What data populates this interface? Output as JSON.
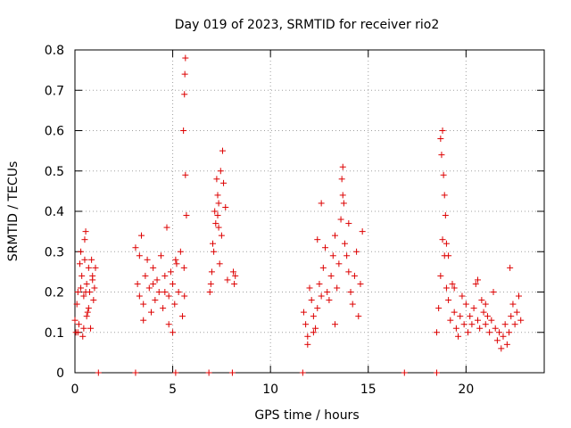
{
  "chart_data": {
    "type": "scatter",
    "title": "Day 019 of 2023, SRMTID for receiver rio2",
    "xlabel": "GPS time / hours",
    "ylabel": "SRMTID / TECUs",
    "xlim": [
      0,
      24
    ],
    "ylim": [
      0,
      0.8
    ],
    "xticks": [
      0,
      5,
      10,
      15,
      20
    ],
    "yticks": [
      0,
      0.1,
      0.2,
      0.3,
      0.4,
      0.5,
      0.6,
      0.7,
      0.8
    ],
    "xtick_labels": [
      "0",
      "5",
      "10",
      "15",
      "20"
    ],
    "ytick_labels": [
      "0",
      "0.1",
      "0.2",
      "0.3",
      "0.4",
      "0.5",
      "0.6",
      "0.7",
      "0.8"
    ],
    "grid": true,
    "marker": "+",
    "color": "#dd0000",
    "series": [
      {
        "name": "SRMTID",
        "x": [
          0.0,
          0.05,
          0.1,
          0.15,
          0.2,
          0.25,
          0.3,
          0.35,
          0.4,
          0.45,
          0.5,
          0.55,
          0.6,
          0.65,
          0.7,
          0.75,
          0.8,
          0.85,
          0.9,
          0.95,
          1.0,
          1.05,
          0.15,
          0.3,
          0.5,
          0.7,
          0.9,
          0.6,
          0.55,
          0.45,
          3.1,
          3.2,
          3.3,
          3.4,
          3.5,
          3.6,
          3.7,
          3.8,
          3.9,
          4.0,
          4.1,
          4.2,
          4.3,
          4.4,
          4.5,
          4.6,
          4.7,
          4.8,
          4.9,
          5.0,
          5.1,
          5.2,
          5.3,
          5.4,
          5.5,
          5.6,
          5.65,
          5.55,
          5.6,
          5.62,
          5.65,
          5.7,
          5.58,
          5.0,
          4.8,
          3.3,
          3.5,
          4.0,
          4.6,
          5.15,
          6.9,
          7.0,
          7.1,
          7.2,
          7.3,
          7.4,
          7.5,
          7.6,
          7.7,
          7.8,
          6.95,
          7.05,
          7.15,
          7.25,
          7.35,
          7.45,
          7.55,
          8.1,
          8.15,
          8.2,
          7.3,
          7.35,
          11.7,
          11.8,
          11.9,
          12.0,
          12.1,
          12.2,
          12.3,
          12.4,
          12.5,
          12.6,
          12.7,
          12.8,
          12.9,
          13.0,
          13.1,
          13.2,
          13.3,
          13.4,
          13.5,
          13.6,
          13.7,
          13.8,
          13.9,
          14.0,
          14.1,
          14.2,
          14.3,
          14.4,
          14.5,
          14.6,
          14.7,
          13.65,
          13.7,
          13.75,
          12.6,
          12.4,
          14.0,
          11.9,
          12.2,
          13.3,
          18.5,
          18.6,
          18.7,
          18.8,
          18.9,
          19.0,
          19.1,
          19.2,
          19.3,
          19.4,
          19.5,
          19.6,
          19.7,
          19.8,
          19.9,
          20.0,
          20.1,
          20.2,
          20.3,
          20.4,
          20.5,
          20.6,
          20.7,
          20.8,
          20.9,
          21.0,
          21.1,
          21.2,
          21.3,
          21.4,
          21.5,
          21.6,
          21.7,
          21.8,
          21.9,
          22.0,
          22.1,
          22.2,
          22.3,
          22.4,
          22.5,
          22.6,
          22.7,
          22.8,
          18.75,
          18.8,
          18.85,
          18.9,
          18.95,
          19.0,
          18.7,
          19.1,
          22.25,
          20.6,
          21.0,
          19.4,
          1.2,
          3.1,
          5.15,
          6.85,
          8.05,
          11.65,
          16.85,
          18.5
        ],
        "y": [
          0.13,
          0.1,
          0.17,
          0.2,
          0.12,
          0.27,
          0.3,
          0.24,
          0.09,
          0.19,
          0.33,
          0.35,
          0.22,
          0.15,
          0.26,
          0.2,
          0.11,
          0.28,
          0.23,
          0.18,
          0.21,
          0.26,
          0.1,
          0.21,
          0.28,
          0.16,
          0.24,
          0.14,
          0.2,
          0.11,
          0.31,
          0.22,
          0.19,
          0.34,
          0.17,
          0.24,
          0.28,
          0.21,
          0.15,
          0.26,
          0.18,
          0.23,
          0.2,
          0.29,
          0.16,
          0.24,
          0.36,
          0.19,
          0.25,
          0.22,
          0.17,
          0.27,
          0.2,
          0.3,
          0.14,
          0.19,
          0.49,
          0.6,
          0.69,
          0.74,
          0.78,
          0.39,
          0.26,
          0.1,
          0.12,
          0.29,
          0.13,
          0.22,
          0.2,
          0.28,
          0.2,
          0.25,
          0.3,
          0.37,
          0.44,
          0.27,
          0.34,
          0.47,
          0.41,
          0.23,
          0.22,
          0.32,
          0.4,
          0.48,
          0.36,
          0.5,
          0.55,
          0.25,
          0.22,
          0.24,
          0.39,
          0.42,
          0.15,
          0.12,
          0.09,
          0.21,
          0.18,
          0.14,
          0.11,
          0.16,
          0.22,
          0.19,
          0.26,
          0.31,
          0.2,
          0.18,
          0.24,
          0.29,
          0.34,
          0.21,
          0.27,
          0.38,
          0.44,
          0.32,
          0.29,
          0.25,
          0.2,
          0.17,
          0.24,
          0.3,
          0.14,
          0.22,
          0.35,
          0.48,
          0.51,
          0.42,
          0.42,
          0.33,
          0.37,
          0.07,
          0.1,
          0.12,
          0.1,
          0.16,
          0.24,
          0.33,
          0.29,
          0.21,
          0.18,
          0.13,
          0.22,
          0.15,
          0.11,
          0.09,
          0.14,
          0.19,
          0.12,
          0.17,
          0.1,
          0.14,
          0.12,
          0.16,
          0.22,
          0.13,
          0.11,
          0.18,
          0.15,
          0.12,
          0.14,
          0.1,
          0.13,
          0.2,
          0.11,
          0.08,
          0.1,
          0.06,
          0.09,
          0.12,
          0.07,
          0.1,
          0.14,
          0.17,
          0.12,
          0.15,
          0.19,
          0.13,
          0.54,
          0.6,
          0.49,
          0.44,
          0.39,
          0.32,
          0.58,
          0.29,
          0.26,
          0.23,
          0.17,
          0.21,
          0.0,
          0.0,
          0.0,
          0.0,
          0.0,
          0.0,
          0.0,
          0.0
        ]
      }
    ]
  }
}
